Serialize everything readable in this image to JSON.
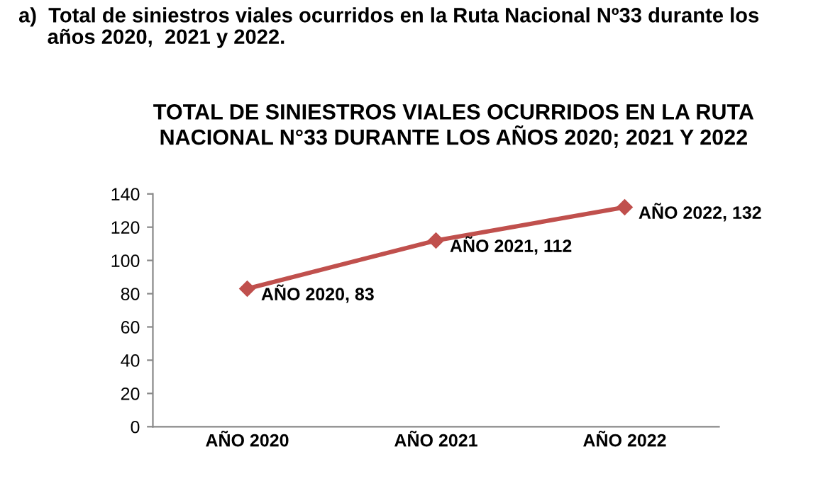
{
  "chart_data": {
    "type": "line",
    "title": "TOTAL DE SINIESTROS VIALES OCURRIDOS EN LA RUTA\nNACIONAL N°33 DURANTE LOS AÑOS 2020; 2021 Y 2022",
    "annotations": [
      "a)  Total de siniestros viales ocurridos en la Ruta Nacional Nº33 durante los\n     años 2020,  2021 y 2022."
    ],
    "categories": [
      "AÑO 2020",
      "AÑO 2021",
      "AÑO 2022"
    ],
    "series": [
      {
        "color": "#c0504d",
        "values": [
          83,
          112,
          132
        ],
        "value_labels": [
          "AÑO 2020, 83",
          "AÑO 2021, 112",
          "AÑO 2022, 132"
        ]
      }
    ],
    "ylim": [
      0,
      140
    ],
    "yticks": [
      0,
      20,
      40,
      60,
      80,
      100,
      120,
      140
    ],
    "grid": false,
    "legend": false,
    "marker": "diamond",
    "line_style": "solid"
  }
}
